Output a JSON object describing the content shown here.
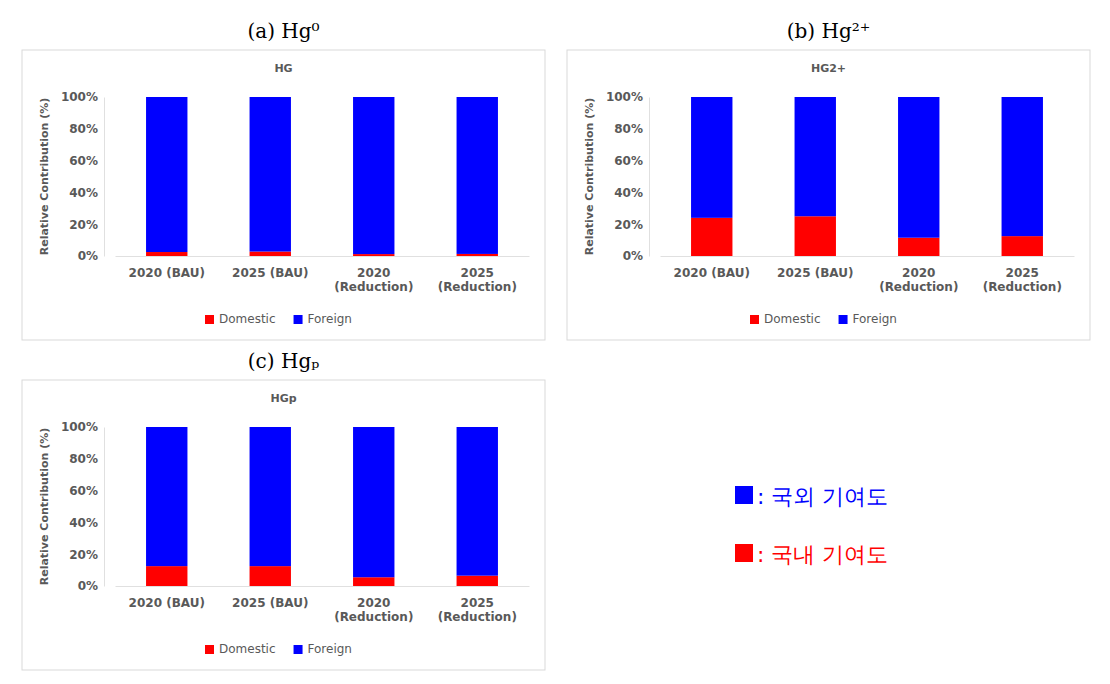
{
  "chart_data": [
    {
      "type": "bar",
      "stacked": true,
      "title": "(a) Hg⁰",
      "subtitle": "HG",
      "y_label": "Relative Contribution (%)",
      "categories": [
        "2020 (BAU)",
        "2025 (BAU)",
        "2020 (Reduction)",
        "2025 (Reduction)"
      ],
      "series": [
        {
          "name": "Domestic",
          "color": "#ff0000",
          "values": [
            2.5,
            2.8,
            1.2,
            1.3
          ]
        },
        {
          "name": "Foreign",
          "color": "#0000ff",
          "values": [
            97.5,
            97.2,
            98.8,
            98.7
          ]
        }
      ],
      "ylim": [
        0,
        100
      ],
      "yticks": [
        {
          "value": 0,
          "label": "0%"
        },
        {
          "value": 20,
          "label": "20%"
        },
        {
          "value": 40,
          "label": "40%"
        },
        {
          "value": 60,
          "label": "60%"
        },
        {
          "value": 80,
          "label": "80%"
        },
        {
          "value": 100,
          "label": "100%"
        }
      ],
      "grid": false,
      "legend": "bottom"
    },
    {
      "type": "bar",
      "stacked": true,
      "title": "(b) Hg²⁺",
      "subtitle": "HG2+",
      "y_label": "Relative Contribution (%)",
      "categories": [
        "2020 (BAU)",
        "2025 (BAU)",
        "2020 (Reduction)",
        "2025 (Reduction)"
      ],
      "series": [
        {
          "name": "Domestic",
          "color": "#ff0000",
          "values": [
            24,
            25,
            11.5,
            12.5
          ]
        },
        {
          "name": "Foreign",
          "color": "#0000ff",
          "values": [
            76,
            75,
            88.5,
            87.5
          ]
        }
      ],
      "ylim": [
        0,
        100
      ],
      "yticks": [
        {
          "value": 0,
          "label": "0%"
        },
        {
          "value": 20,
          "label": "20%"
        },
        {
          "value": 40,
          "label": "40%"
        },
        {
          "value": 60,
          "label": "60%"
        },
        {
          "value": 80,
          "label": "80%"
        },
        {
          "value": 100,
          "label": "100%"
        }
      ],
      "grid": false,
      "legend": "bottom"
    },
    {
      "type": "bar",
      "stacked": true,
      "title": "(c) Hgₚ",
      "subtitle": "HGp",
      "y_label": "Relative Contribution (%)",
      "categories": [
        "2020 (BAU)",
        "2025 (BAU)",
        "2020 (Reduction)",
        "2025 (Reduction)"
      ],
      "series": [
        {
          "name": "Domestic",
          "color": "#ff0000",
          "values": [
            12.5,
            12.5,
            5.5,
            6.5
          ]
        },
        {
          "name": "Foreign",
          "color": "#0000ff",
          "values": [
            87.5,
            87.5,
            94.5,
            93.5
          ]
        }
      ],
      "ylim": [
        0,
        100
      ],
      "yticks": [
        {
          "value": 0,
          "label": "0%"
        },
        {
          "value": 20,
          "label": "20%"
        },
        {
          "value": 40,
          "label": "40%"
        },
        {
          "value": 60,
          "label": "60%"
        },
        {
          "value": 80,
          "label": "80%"
        },
        {
          "value": 100,
          "label": "100%"
        }
      ],
      "grid": false,
      "legend": "bottom"
    }
  ],
  "annotations": [
    {
      "text": ": 국외 기여도",
      "color": "#0000ff"
    },
    {
      "text": ": 국내 기여도",
      "color": "#ff0000"
    }
  ]
}
